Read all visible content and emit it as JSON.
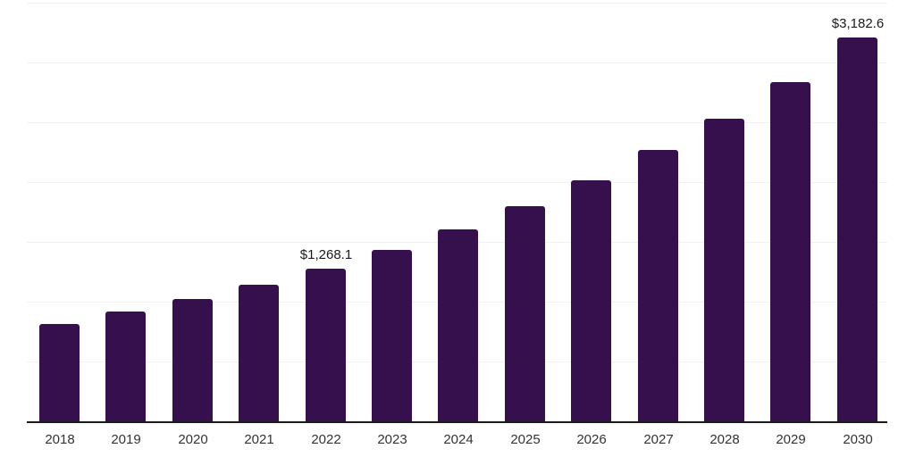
{
  "chart_data": {
    "type": "bar",
    "title": "",
    "xlabel": "",
    "ylabel": "",
    "categories": [
      "2018",
      "2019",
      "2020",
      "2021",
      "2022",
      "2023",
      "2024",
      "2025",
      "2026",
      "2027",
      "2028",
      "2029",
      "2030"
    ],
    "values": [
      810,
      908,
      1012,
      1130,
      1268.1,
      1418,
      1588,
      1780,
      1995,
      2246,
      2512,
      2815,
      3182.6
    ],
    "data_labels": [
      {
        "category": "2022",
        "text": "$1,268.1"
      },
      {
        "category": "2030",
        "text": "$3,182.6"
      }
    ],
    "ylim": [
      0,
      3500
    ],
    "grid": "horizontal-light",
    "legend": "none",
    "bar_color": "#36104D",
    "axis_line_color": "#1c1c1c",
    "gridline_color": "#f2f2f2",
    "tick_label_color": "#333333",
    "data_label_color": "#1a1a1a"
  }
}
